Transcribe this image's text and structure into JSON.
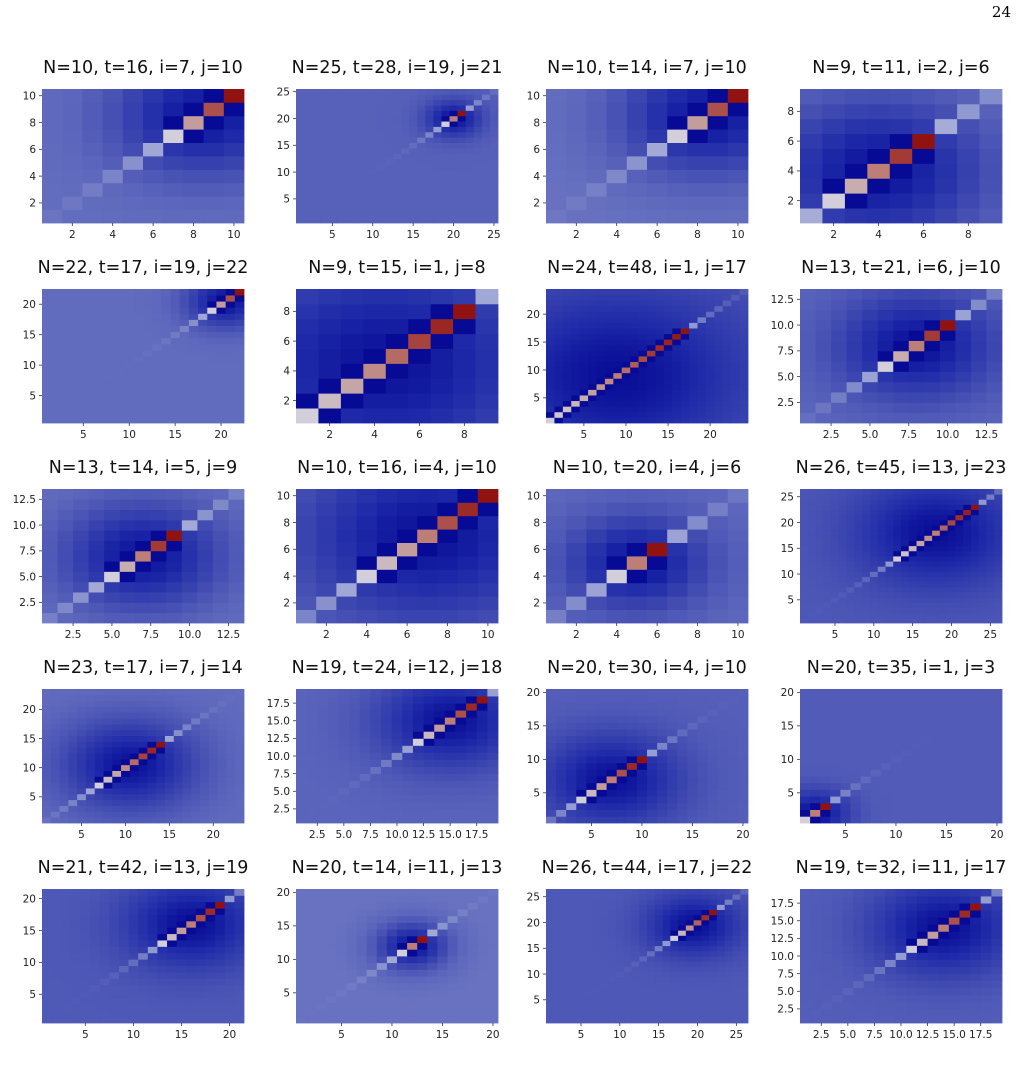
{
  "page": {
    "number": "24"
  },
  "chart_data": [
    {
      "type": "heatmap",
      "title": "N=10, t=16, i=7, j=10",
      "N": 10,
      "i": 7,
      "j": 10,
      "t": 16,
      "xticks": [
        "2",
        "4",
        "6",
        "8",
        "10"
      ],
      "yticks": [
        "2",
        "4",
        "6",
        "8",
        "10"
      ]
    },
    {
      "type": "heatmap",
      "title": "N=25, t=28, i=19, j=21",
      "N": 25,
      "i": 19,
      "j": 21,
      "t": 28,
      "xticks": [
        "5",
        "10",
        "15",
        "20",
        "25"
      ],
      "yticks": [
        "5",
        "10",
        "15",
        "20",
        "25"
      ]
    },
    {
      "type": "heatmap",
      "title": "N=10, t=14, i=7, j=10",
      "N": 10,
      "i": 7,
      "j": 10,
      "t": 14,
      "xticks": [
        "2",
        "4",
        "6",
        "8",
        "10"
      ],
      "yticks": [
        "2",
        "4",
        "6",
        "8",
        "10"
      ]
    },
    {
      "type": "heatmap",
      "title": "N=9, t=11, i=2, j=6",
      "N": 9,
      "i": 2,
      "j": 6,
      "t": 11,
      "xticks": [
        "2",
        "4",
        "6",
        "8"
      ],
      "yticks": [
        "2",
        "4",
        "6",
        "8"
      ]
    },
    {
      "type": "heatmap",
      "title": "N=22, t=17, i=19, j=22",
      "N": 22,
      "i": 19,
      "j": 22,
      "t": 17,
      "xticks": [
        "5",
        "10",
        "15",
        "20"
      ],
      "yticks": [
        "5",
        "10",
        "15",
        "20"
      ]
    },
    {
      "type": "heatmap",
      "title": "N=9, t=15, i=1, j=8",
      "N": 9,
      "i": 1,
      "j": 8,
      "t": 15,
      "xticks": [
        "2",
        "4",
        "6",
        "8"
      ],
      "yticks": [
        "2",
        "4",
        "6",
        "8"
      ]
    },
    {
      "type": "heatmap",
      "title": "N=24, t=48, i=1, j=17",
      "N": 24,
      "i": 1,
      "j": 17,
      "t": 48,
      "xticks": [
        "5",
        "10",
        "15",
        "20"
      ],
      "yticks": [
        "5",
        "10",
        "15",
        "20"
      ]
    },
    {
      "type": "heatmap",
      "title": "N=13, t=21, i=6, j=10",
      "N": 13,
      "i": 6,
      "j": 10,
      "t": 21,
      "xticks": [
        "2.5",
        "5.0",
        "7.5",
        "10.0",
        "12.5"
      ],
      "yticks": [
        "2.5",
        "5.0",
        "7.5",
        "10.0",
        "12.5"
      ]
    },
    {
      "type": "heatmap",
      "title": "N=13, t=14, i=5, j=9",
      "N": 13,
      "i": 5,
      "j": 9,
      "t": 14,
      "xticks": [
        "2.5",
        "5.0",
        "7.5",
        "10.0",
        "12.5"
      ],
      "yticks": [
        "2.5",
        "5.0",
        "7.5",
        "10.0",
        "12.5"
      ]
    },
    {
      "type": "heatmap",
      "title": "N=10, t=16, i=4, j=10",
      "N": 10,
      "i": 4,
      "j": 10,
      "t": 16,
      "xticks": [
        "2",
        "4",
        "6",
        "8",
        "10"
      ],
      "yticks": [
        "2",
        "4",
        "6",
        "8",
        "10"
      ]
    },
    {
      "type": "heatmap",
      "title": "N=10, t=20, i=4, j=6",
      "N": 10,
      "i": 4,
      "j": 6,
      "t": 20,
      "xticks": [
        "2",
        "4",
        "6",
        "8",
        "10"
      ],
      "yticks": [
        "2",
        "4",
        "6",
        "8",
        "10"
      ]
    },
    {
      "type": "heatmap",
      "title": "N=26, t=45, i=13, j=23",
      "N": 26,
      "i": 13,
      "j": 23,
      "t": 45,
      "xticks": [
        "5",
        "10",
        "15",
        "20",
        "25"
      ],
      "yticks": [
        "5",
        "10",
        "15",
        "20",
        "25"
      ]
    },
    {
      "type": "heatmap",
      "title": "N=23, t=17, i=7, j=14",
      "N": 23,
      "i": 7,
      "j": 14,
      "t": 17,
      "xticks": [
        "5",
        "10",
        "15",
        "20"
      ],
      "yticks": [
        "5",
        "10",
        "15",
        "20"
      ]
    },
    {
      "type": "heatmap",
      "title": "N=19, t=24, i=12, j=18",
      "N": 19,
      "i": 12,
      "j": 18,
      "t": 24,
      "xticks": [
        "2.5",
        "5.0",
        "7.5",
        "10.0",
        "12.5",
        "15.0",
        "17.5"
      ],
      "yticks": [
        "2.5",
        "5.0",
        "7.5",
        "10.0",
        "12.5",
        "15.0",
        "17.5"
      ]
    },
    {
      "type": "heatmap",
      "title": "N=20, t=30, i=4, j=10",
      "N": 20,
      "i": 4,
      "j": 10,
      "t": 30,
      "xticks": [
        "5",
        "10",
        "15",
        "20"
      ],
      "yticks": [
        "5",
        "10",
        "15",
        "20"
      ]
    },
    {
      "type": "heatmap",
      "title": "N=20, t=35, i=1, j=3",
      "N": 20,
      "i": 1,
      "j": 3,
      "t": 35,
      "xticks": [
        "5",
        "10",
        "15",
        "20"
      ],
      "yticks": [
        "5",
        "10",
        "15",
        "20"
      ]
    },
    {
      "type": "heatmap",
      "title": "N=21, t=42, i=13, j=19",
      "N": 21,
      "i": 13,
      "j": 19,
      "t": 42,
      "xticks": [
        "5",
        "10",
        "15",
        "20"
      ],
      "yticks": [
        "5",
        "10",
        "15",
        "20"
      ]
    },
    {
      "type": "heatmap",
      "title": "N=20, t=14, i=11, j=13",
      "N": 20,
      "i": 11,
      "j": 13,
      "t": 14,
      "xticks": [
        "5",
        "10",
        "15",
        "20"
      ],
      "yticks": [
        "5",
        "10",
        "15",
        "20"
      ]
    },
    {
      "type": "heatmap",
      "title": "N=26, t=44, i=17, j=22",
      "N": 26,
      "i": 17,
      "j": 22,
      "t": 44,
      "xticks": [
        "5",
        "10",
        "15",
        "20",
        "25"
      ],
      "yticks": [
        "5",
        "10",
        "15",
        "20",
        "25"
      ]
    },
    {
      "type": "heatmap",
      "title": "N=19, t=32, i=11, j=17",
      "N": 19,
      "i": 11,
      "j": 17,
      "t": 32,
      "xticks": [
        "2.5",
        "5.0",
        "7.5",
        "10.0",
        "12.5",
        "15.0",
        "17.5"
      ],
      "yticks": [
        "2.5",
        "5.0",
        "7.5",
        "10.0",
        "12.5",
        "15.0",
        "17.5"
      ]
    }
  ]
}
